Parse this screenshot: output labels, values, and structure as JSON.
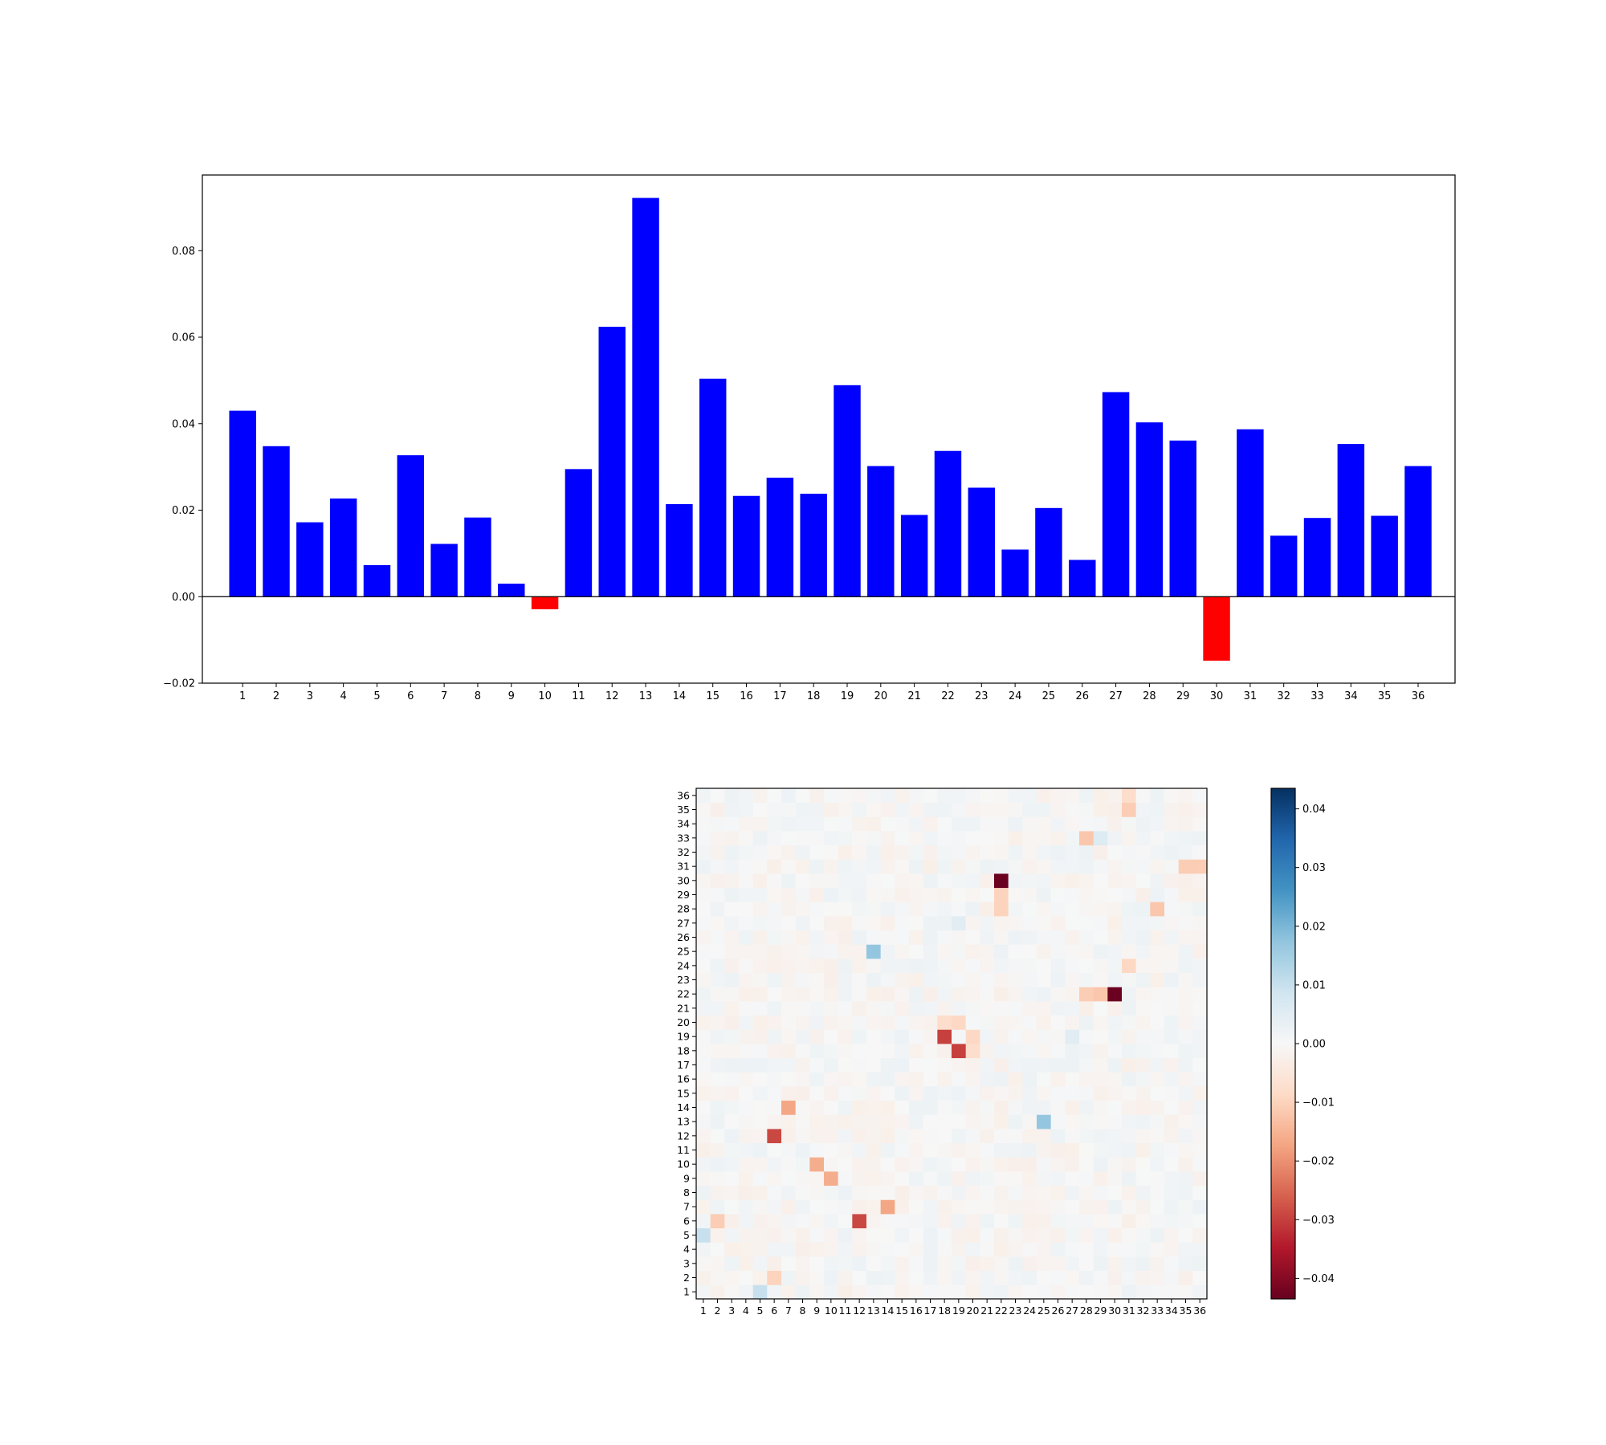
{
  "chart_data": [
    {
      "type": "bar",
      "categories": [
        "1",
        "2",
        "3",
        "4",
        "5",
        "6",
        "7",
        "8",
        "9",
        "10",
        "11",
        "12",
        "13",
        "14",
        "15",
        "16",
        "17",
        "18",
        "19",
        "20",
        "21",
        "22",
        "23",
        "24",
        "25",
        "26",
        "27",
        "28",
        "29",
        "30",
        "31",
        "32",
        "33",
        "34",
        "35",
        "36"
      ],
      "values": [
        0.043,
        0.0348,
        0.0172,
        0.0227,
        0.0073,
        0.0327,
        0.0122,
        0.0183,
        0.003,
        -0.0029,
        0.0295,
        0.0624,
        0.0922,
        0.0214,
        0.0504,
        0.0233,
        0.0275,
        0.0238,
        0.0489,
        0.0302,
        0.0189,
        0.0337,
        0.0252,
        0.0109,
        0.0205,
        0.0085,
        0.0473,
        0.0403,
        0.0361,
        -0.0148,
        0.0387,
        0.0141,
        0.0182,
        0.0353,
        0.0187,
        0.0302
      ],
      "ylim": [
        -0.02,
        0.0975
      ],
      "yticks": [
        -0.02,
        0.0,
        0.02,
        0.04,
        0.06,
        0.08
      ],
      "ytick_labels": [
        "−0.02",
        "0.00",
        "0.02",
        "0.04",
        "0.06",
        "0.08"
      ],
      "positive_color": "#0000ff",
      "negative_color": "#ff0000",
      "zero_line": true
    },
    {
      "type": "heatmap",
      "x_labels": [
        "1",
        "2",
        "3",
        "4",
        "5",
        "6",
        "7",
        "8",
        "9",
        "10",
        "11",
        "12",
        "13",
        "14",
        "15",
        "16",
        "17",
        "18",
        "19",
        "20",
        "21",
        "22",
        "23",
        "24",
        "25",
        "26",
        "27",
        "28",
        "29",
        "30",
        "31",
        "32",
        "33",
        "34",
        "35",
        "36"
      ],
      "y_labels": [
        "1",
        "2",
        "3",
        "4",
        "5",
        "6",
        "7",
        "8",
        "9",
        "10",
        "11",
        "12",
        "13",
        "14",
        "15",
        "16",
        "17",
        "18",
        "19",
        "20",
        "21",
        "22",
        "23",
        "24",
        "25",
        "26",
        "27",
        "28",
        "29",
        "30",
        "31",
        "32",
        "33",
        "34",
        "35",
        "36"
      ],
      "colormap": "RdBu",
      "vmin": -0.0435,
      "vmax": 0.0435,
      "colorbar_ticks": [
        -0.04,
        -0.03,
        -0.02,
        -0.01,
        0.0,
        0.01,
        0.02,
        0.03,
        0.04
      ],
      "colorbar_tick_labels": [
        "−0.04",
        "−0.03",
        "−0.02",
        "−0.01",
        "0.00",
        "0.01",
        "0.02",
        "0.03",
        "0.04"
      ],
      "highlight_cells": [
        {
          "row": 30,
          "col": 22,
          "value": -0.043
        },
        {
          "row": 22,
          "col": 30,
          "value": -0.043
        },
        {
          "row": 19,
          "col": 18,
          "value": -0.03
        },
        {
          "row": 18,
          "col": 19,
          "value": -0.03
        },
        {
          "row": 12,
          "col": 6,
          "value": -0.029
        },
        {
          "row": 6,
          "col": 12,
          "value": -0.029
        },
        {
          "row": 14,
          "col": 7,
          "value": -0.017
        },
        {
          "row": 7,
          "col": 14,
          "value": -0.017
        },
        {
          "row": 10,
          "col": 9,
          "value": -0.016
        },
        {
          "row": 9,
          "col": 10,
          "value": -0.016
        },
        {
          "row": 25,
          "col": 13,
          "value": 0.017
        },
        {
          "row": 13,
          "col": 25,
          "value": 0.017
        },
        {
          "row": 31,
          "col": 35,
          "value": -0.011
        },
        {
          "row": 31,
          "col": 36,
          "value": -0.011
        },
        {
          "row": 35,
          "col": 31,
          "value": -0.011
        },
        {
          "row": 36,
          "col": 31,
          "value": -0.008
        },
        {
          "row": 28,
          "col": 33,
          "value": -0.012
        },
        {
          "row": 33,
          "col": 28,
          "value": -0.012
        },
        {
          "row": 22,
          "col": 28,
          "value": -0.011
        },
        {
          "row": 22,
          "col": 29,
          "value": -0.012
        },
        {
          "row": 28,
          "col": 22,
          "value": -0.01
        },
        {
          "row": 29,
          "col": 22,
          "value": -0.01
        },
        {
          "row": 24,
          "col": 31,
          "value": -0.009
        },
        {
          "row": 5,
          "col": 1,
          "value": 0.01
        },
        {
          "row": 1,
          "col": 5,
          "value": 0.01
        },
        {
          "row": 6,
          "col": 2,
          "value": -0.011
        },
        {
          "row": 2,
          "col": 6,
          "value": -0.01
        },
        {
          "row": 19,
          "col": 20,
          "value": -0.009
        },
        {
          "row": 20,
          "col": 19,
          "value": -0.009
        },
        {
          "row": 18,
          "col": 20,
          "value": -0.008
        },
        {
          "row": 20,
          "col": 18,
          "value": -0.008
        },
        {
          "row": 33,
          "col": 29,
          "value": 0.006
        },
        {
          "row": 27,
          "col": 19,
          "value": 0.005
        },
        {
          "row": 19,
          "col": 27,
          "value": 0.005
        }
      ]
    }
  ]
}
